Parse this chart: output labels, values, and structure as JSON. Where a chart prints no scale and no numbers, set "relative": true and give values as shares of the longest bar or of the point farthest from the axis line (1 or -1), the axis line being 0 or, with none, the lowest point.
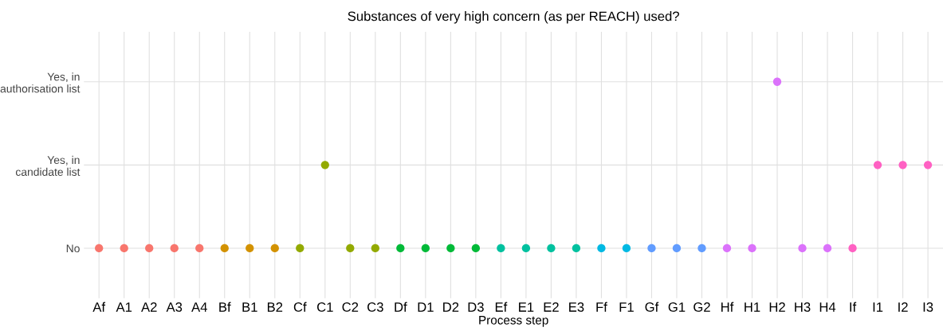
{
  "chart_data": {
    "type": "scatter",
    "title": "Substances of very high concern (as per REACH) used?",
    "xlabel": "Process step",
    "relative": true,
    "categories": [
      "Af",
      "A1",
      "A2",
      "A3",
      "A4",
      "Bf",
      "B1",
      "B2",
      "Cf",
      "C1",
      "C2",
      "C3",
      "Df",
      "D1",
      "D2",
      "D3",
      "Ef",
      "E1",
      "E2",
      "E3",
      "Ff",
      "F1",
      "Gf",
      "G1",
      "G2",
      "Hf",
      "H1",
      "H2",
      "H3",
      "H4",
      "If",
      "I1",
      "I2",
      "I3"
    ],
    "y_categories": [
      "Yes, in\nauthorisation list",
      "Yes, in\ncandidate list",
      "No"
    ],
    "values": [
      0,
      0,
      0,
      0,
      0,
      0,
      0,
      0,
      0,
      0.5,
      0,
      0,
      0,
      0,
      0,
      0,
      0,
      0,
      0,
      0,
      0,
      0,
      0,
      0,
      0,
      0,
      0,
      1,
      0,
      0,
      0,
      0.5,
      0.5,
      0.5
    ],
    "colors": [
      "#f8766d",
      "#f8766d",
      "#f8766d",
      "#f8766d",
      "#f8766d",
      "#d39200",
      "#d39200",
      "#d39200",
      "#93aa00",
      "#93aa00",
      "#93aa00",
      "#93aa00",
      "#00ba38",
      "#00ba38",
      "#00ba38",
      "#00ba38",
      "#00c19f",
      "#00c19f",
      "#00c19f",
      "#00c19f",
      "#00b9e3",
      "#00b9e3",
      "#619cff",
      "#619cff",
      "#619cff",
      "#db72fb",
      "#db72fb",
      "#db72fb",
      "#db72fb",
      "#db72fb",
      "#ff61c3",
      "#ff61c3",
      "#ff61c3",
      "#ff61c3"
    ],
    "grid": true,
    "marker": "circle"
  }
}
